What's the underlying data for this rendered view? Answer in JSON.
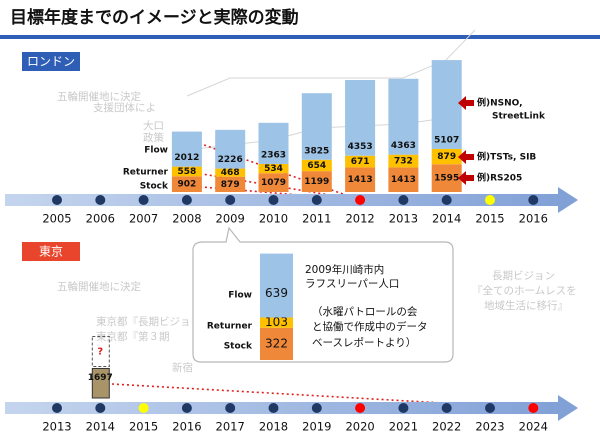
{
  "header": {
    "title": "目標年度までのイメージと実際の変動"
  },
  "chart_data": [
    {
      "type": "bar",
      "stacked": true,
      "region": "ロンドン",
      "region_color": "#2e5eb5",
      "categories": [
        "2005",
        "2006",
        "2007",
        "2008",
        "2009",
        "2010",
        "2011",
        "2012",
        "2013",
        "2014",
        "2015",
        "2016"
      ],
      "milestone_colors": [
        "#1f3864",
        "#1f3864",
        "#1f3864",
        "#1f3864",
        "#1f3864",
        "#1f3864",
        "#1f3864",
        "#ff0000",
        "#1f3864",
        "#1f3864",
        "#ffff00",
        "#1f3864"
      ],
      "series": [
        {
          "name": "Stock",
          "color": "#f0883a",
          "values": [
            null,
            null,
            null,
            902,
            879,
            1079,
            1199,
            1413,
            1413,
            1595,
            null,
            null
          ]
        },
        {
          "name": "Returner",
          "color": "#ffc000",
          "values": [
            null,
            null,
            null,
            558,
            468,
            534,
            654,
            671,
            732,
            879,
            null,
            null
          ]
        },
        {
          "name": "Flow",
          "color": "#9dc3e6",
          "values": [
            null,
            null,
            null,
            2012,
            2226,
            2363,
            3825,
            4353,
            4363,
            5107,
            null,
            null
          ]
        }
      ],
      "annotations": [
        [
          "例)NSNO,",
          "StreetLink"
        ],
        [
          "例)TSTs, SIB"
        ],
        [
          "例)RS205"
        ]
      ]
    },
    {
      "type": "bar",
      "stacked": true,
      "region": "東京",
      "region_color": "#e8452c",
      "categories": [
        "2013",
        "2014",
        "2015",
        "2016",
        "2017",
        "2018",
        "2019",
        "2020",
        "2021",
        "2022",
        "2023",
        "2024"
      ],
      "milestone_colors": [
        "#1f3864",
        "#1f3864",
        "#ffff00",
        "#1f3864",
        "#1f3864",
        "#1f3864",
        "#1f3864",
        "#ff0000",
        "#1f3864",
        "#1f3864",
        "#1f3864",
        "#ff0000"
      ],
      "series": [
        {
          "name": "Stock",
          "color": "#a89468",
          "values": [
            null,
            1697,
            null,
            null,
            null,
            null,
            null,
            null,
            null,
            null,
            null,
            null
          ]
        }
      ],
      "unknown_label": "?"
    },
    {
      "type": "callout-bar",
      "stacked": true,
      "categories": [
        null
      ],
      "series": [
        {
          "name": "Stock",
          "color": "#f0883a",
          "values": [
            322
          ]
        },
        {
          "name": "Returner",
          "color": "#ffc000",
          "values": [
            103
          ]
        },
        {
          "name": "Flow",
          "color": "#9dc3e6",
          "values": [
            639
          ]
        }
      ],
      "caption": [
        "2009年川崎市内",
        "ラフスリーパー人口",
        "（水曜パトロールの会",
        "と協働で作成中のデータ",
        "ベースレポートより）"
      ]
    }
  ],
  "background_notes": [
    "五輪開催地に決定",
    "支援団体によ",
    "大口",
    "政策",
    "五輪開催地に決定",
    "東京都『長期ビジョ",
    "東京都『第３期",
    "新宿",
    "長期ビジョン",
    "『全てのホームレスを",
    "地域生活に移行』"
  ]
}
